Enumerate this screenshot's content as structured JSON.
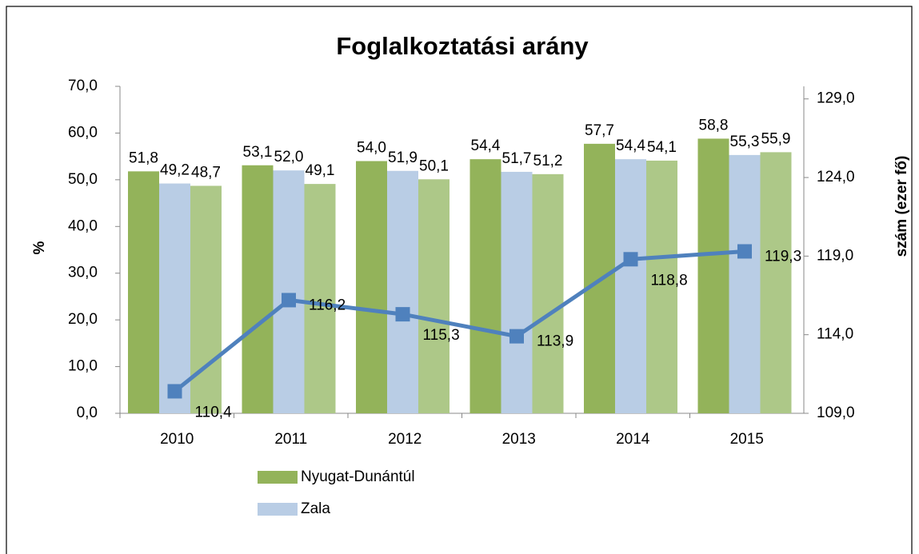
{
  "chart_data": {
    "type": "bar",
    "title": "Foglalkoztatási arány",
    "y_label": "%",
    "y2_label": "szám (ezer fő)",
    "categories": [
      "2010",
      "2011",
      "2012",
      "2013",
      "2014",
      "2015"
    ],
    "series": [
      {
        "name": "Nyugat-Dunántúl",
        "color": "#93b35a",
        "values": [
          51.8,
          53.1,
          54.0,
          54.4,
          57.7,
          58.8
        ],
        "value_labels": [
          "51,8",
          "53,1",
          "54,0",
          "54,4",
          "57,7",
          "58,8"
        ]
      },
      {
        "name": "Zala",
        "color": "#b9cde5",
        "values": [
          49.2,
          52.0,
          51.9,
          51.7,
          54.4,
          55.3
        ],
        "value_labels": [
          "49,2",
          "52,0",
          "51,9",
          "51,7",
          "54,4",
          "55,3"
        ]
      },
      {
        "color": "#adc888",
        "values": [
          48.7,
          49.1,
          50.1,
          51.2,
          54.1,
          55.9
        ],
        "value_labels": [
          "48,7",
          "49,1",
          "50,1",
          "51,2",
          "54,1",
          "55,9"
        ]
      },
      {
        "type": "line",
        "axis": "y2",
        "color": "#4f81bd",
        "values": [
          110.4,
          116.2,
          115.3,
          113.9,
          118.8,
          119.3
        ],
        "value_labels": [
          "110,4",
          "116,2",
          "115,3",
          "113,9",
          "118,8",
          "119,3"
        ]
      }
    ],
    "ylim": [
      0,
      70
    ],
    "yticks": [
      {
        "value": 0,
        "label": "0,0"
      },
      {
        "value": 10,
        "label": "10,0"
      },
      {
        "value": 20,
        "label": "20,0"
      },
      {
        "value": 30,
        "label": "30,0"
      },
      {
        "value": 40,
        "label": "40,0"
      },
      {
        "value": 50,
        "label": "50,0"
      },
      {
        "value": 60,
        "label": "60,0"
      },
      {
        "value": 70,
        "label": "70,0"
      }
    ],
    "y2lim": [
      109,
      129.8
    ],
    "y2ticks": [
      {
        "value": 109,
        "label": "109,0"
      },
      {
        "value": 114,
        "label": "114,0"
      },
      {
        "value": 119,
        "label": "119,0"
      },
      {
        "value": 124,
        "label": "124,0"
      },
      {
        "value": 129,
        "label": "129,0"
      }
    ],
    "grid": false,
    "legend": "bottom-left"
  }
}
